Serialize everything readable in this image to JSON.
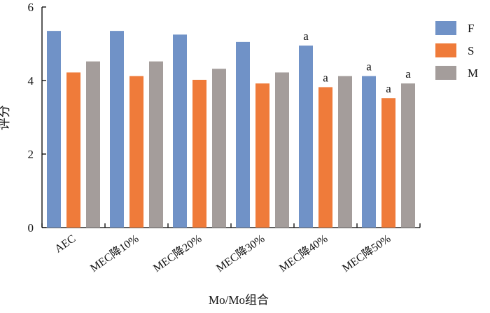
{
  "chart_data": {
    "type": "bar",
    "categories": [
      "AEC",
      "MEC降10%",
      "MEC降20%",
      "MEC降30%",
      "MEC降40%",
      "MEC降50%"
    ],
    "series": [
      {
        "name": "F",
        "color": "#7092c7",
        "values": [
          5.35,
          5.35,
          5.25,
          5.05,
          4.95,
          4.12
        ],
        "annotations": [
          "",
          "",
          "",
          "",
          "a",
          "a"
        ]
      },
      {
        "name": "S",
        "color": "#ef7b3a",
        "values": [
          4.22,
          4.12,
          4.02,
          3.92,
          3.82,
          3.52
        ],
        "annotations": [
          "",
          "",
          "",
          "",
          "a",
          "a"
        ]
      },
      {
        "name": "M",
        "color": "#a49d9b",
        "values": [
          4.52,
          4.52,
          4.32,
          4.22,
          4.12,
          3.92
        ],
        "annotations": [
          "",
          "",
          "",
          "",
          "",
          "a"
        ]
      }
    ],
    "xlabel": "Mo/Mo组合",
    "ylabel": "评分",
    "ylim": [
      0,
      6
    ],
    "yticks": [
      0,
      2,
      4,
      6
    ],
    "grid": false,
    "legend_position": "top-right"
  }
}
